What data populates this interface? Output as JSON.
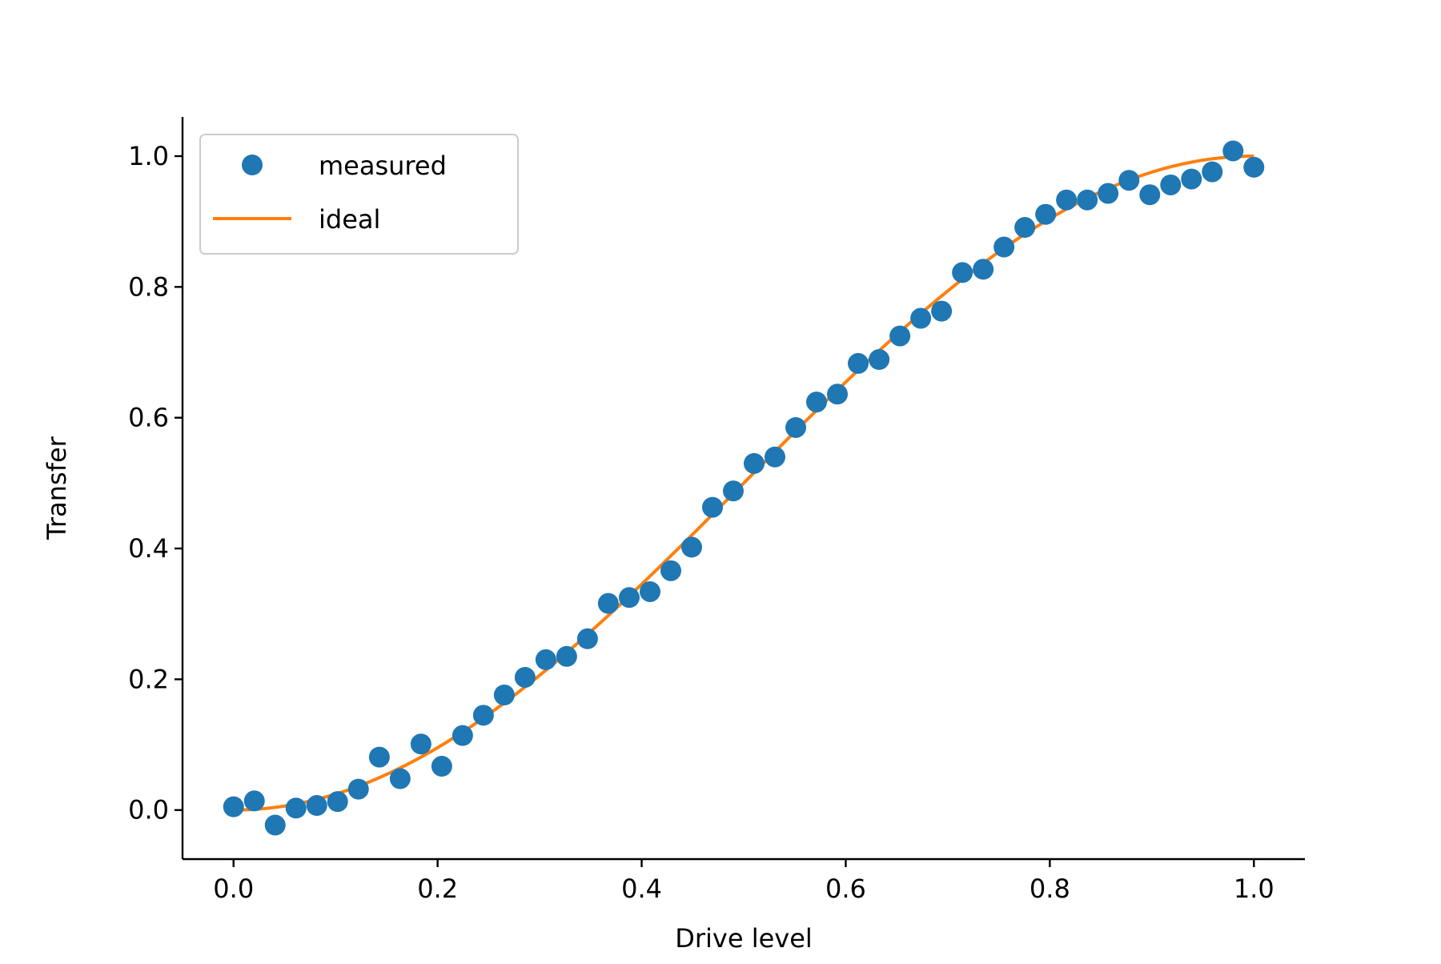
{
  "chart_data": {
    "type": "scatter",
    "title": "",
    "xlabel": "Drive level",
    "ylabel": "Transfer",
    "xlim": [
      -0.05,
      1.05
    ],
    "ylim": [
      -0.075,
      1.06
    ],
    "xticks": [
      0.0,
      0.2,
      0.4,
      0.6,
      0.8,
      1.0
    ],
    "xtick_labels": [
      "0.0",
      "0.2",
      "0.4",
      "0.6",
      "0.8",
      "1.0"
    ],
    "yticks": [
      0.0,
      0.2,
      0.4,
      0.6,
      0.8,
      1.0
    ],
    "ytick_labels": [
      "0.0",
      "0.2",
      "0.4",
      "0.6",
      "0.8",
      "1.0"
    ],
    "grid": false,
    "legend_position": "top-left",
    "colors": {
      "measured": "#1f77b4",
      "ideal": "#ff7f0e"
    },
    "series": [
      {
        "name": "measured",
        "kind": "scatter",
        "x": [
          0.0,
          0.0204,
          0.0408,
          0.0612,
          0.0816,
          0.102,
          0.1224,
          0.1429,
          0.1633,
          0.1837,
          0.2041,
          0.2245,
          0.2449,
          0.2653,
          0.2857,
          0.3061,
          0.3265,
          0.3469,
          0.3673,
          0.3878,
          0.4082,
          0.4286,
          0.449,
          0.4694,
          0.4898,
          0.5102,
          0.5306,
          0.551,
          0.5714,
          0.5918,
          0.6122,
          0.6327,
          0.6531,
          0.6735,
          0.6939,
          0.7143,
          0.7347,
          0.7551,
          0.7755,
          0.7959,
          0.8163,
          0.8367,
          0.8571,
          0.8776,
          0.898,
          0.9184,
          0.9388,
          0.9592,
          0.9796,
          1.0
        ],
        "y": [
          0.005,
          0.014,
          -0.023,
          0.003,
          0.007,
          0.013,
          0.032,
          0.081,
          0.048,
          0.101,
          0.067,
          0.114,
          0.145,
          0.176,
          0.203,
          0.23,
          0.235,
          0.262,
          0.316,
          0.325,
          0.334,
          0.366,
          0.402,
          0.463,
          0.488,
          0.53,
          0.54,
          0.585,
          0.624,
          0.636,
          0.683,
          0.689,
          0.725,
          0.752,
          0.763,
          0.822,
          0.827,
          0.861,
          0.891,
          0.911,
          0.933,
          0.933,
          0.943,
          0.963,
          0.941,
          0.956,
          0.965,
          0.976,
          1.008,
          0.983
        ]
      },
      {
        "name": "ideal",
        "kind": "line",
        "formula": "0.5 - 0.5*cos(pi*x)"
      }
    ]
  }
}
